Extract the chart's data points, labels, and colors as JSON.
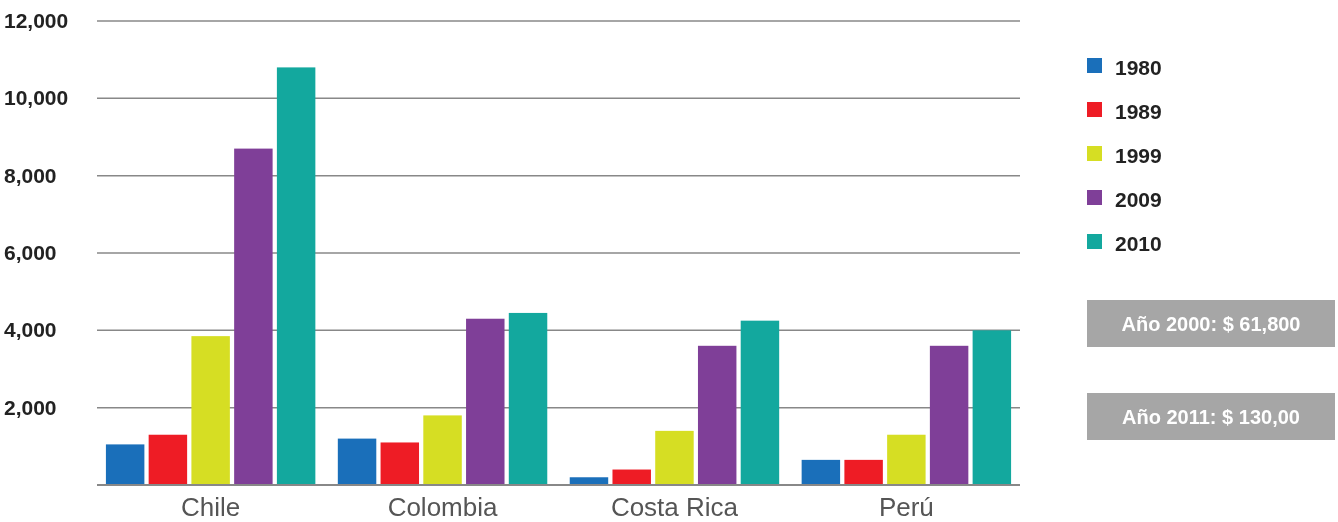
{
  "chart_data": {
    "type": "bar",
    "categories": [
      "Chile",
      "Colombia",
      "Costa Rica",
      "Perú"
    ],
    "series": [
      {
        "name": "1980",
        "color": "#1a6fba",
        "values": [
          1050,
          1200,
          200,
          650
        ]
      },
      {
        "name": "1989",
        "color": "#ee1c25",
        "values": [
          1300,
          1100,
          400,
          650
        ]
      },
      {
        "name": "1999",
        "color": "#d6de23",
        "values": [
          3850,
          1800,
          1400,
          1300
        ]
      },
      {
        "name": "2009",
        "color": "#7f3f98",
        "values": [
          8700,
          4300,
          3600,
          3600
        ]
      },
      {
        "name": "2010",
        "color": "#13a89e",
        "values": [
          10800,
          4450,
          4250,
          4000
        ]
      }
    ],
    "ylim": [
      0,
      12000
    ],
    "yticks": [
      {
        "value": 2000,
        "label": "2,000"
      },
      {
        "value": 4000,
        "label": "4,000"
      },
      {
        "value": 6000,
        "label": "6,000"
      },
      {
        "value": 8000,
        "label": "8,000"
      },
      {
        "value": 10000,
        "label": "10,000"
      },
      {
        "value": 12000,
        "label": "12,000"
      }
    ],
    "grid": "y",
    "legend": "right",
    "annotations": [
      "Año 2000: $ 61,800",
      "Año 2011: $ 130,00"
    ]
  }
}
